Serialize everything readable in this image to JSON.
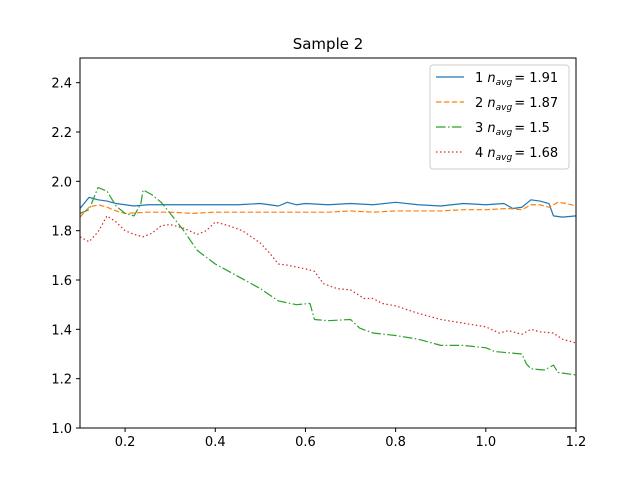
{
  "chart_data": {
    "type": "line",
    "title": "Sample 2",
    "xlabel": "",
    "ylabel": "",
    "xlim": [
      0.1,
      1.2
    ],
    "ylim": [
      1.0,
      2.5
    ],
    "xticks": [
      0.2,
      0.4,
      0.6,
      0.8,
      1.0,
      1.2
    ],
    "xtick_labels": [
      "0.2",
      "0.4",
      "0.6",
      "0.8",
      "1.0",
      "1.2"
    ],
    "yticks": [
      1.0,
      1.2,
      1.4,
      1.6,
      1.8,
      2.0,
      2.2,
      2.4
    ],
    "ytick_labels": [
      "1.0",
      "1.2",
      "1.4",
      "1.6",
      "1.8",
      "2.0",
      "2.2",
      "2.4"
    ],
    "grid": false,
    "legend_position": "top-right",
    "series": [
      {
        "name": "1",
        "label_prefix": "1 ",
        "label_sub": "avg",
        "label_value": "= 1.91",
        "color": "#1f77b4",
        "style": "solid",
        "x": [
          0.1,
          0.12,
          0.14,
          0.16,
          0.18,
          0.2,
          0.22,
          0.25,
          0.3,
          0.35,
          0.4,
          0.45,
          0.5,
          0.54,
          0.56,
          0.58,
          0.6,
          0.65,
          0.7,
          0.75,
          0.8,
          0.85,
          0.9,
          0.95,
          1.0,
          1.04,
          1.06,
          1.08,
          1.1,
          1.12,
          1.14,
          1.15,
          1.17,
          1.2
        ],
        "y": [
          1.89,
          1.935,
          1.925,
          1.92,
          1.91,
          1.905,
          1.9,
          1.905,
          1.905,
          1.905,
          1.905,
          1.905,
          1.91,
          1.9,
          1.915,
          1.905,
          1.91,
          1.905,
          1.91,
          1.905,
          1.915,
          1.905,
          1.9,
          1.91,
          1.905,
          1.91,
          1.89,
          1.895,
          1.925,
          1.92,
          1.91,
          1.86,
          1.855,
          1.86
        ]
      },
      {
        "name": "2",
        "label_prefix": "2 ",
        "label_sub": "avg",
        "label_value": "= 1.87",
        "color": "#ff7f0e",
        "style": "dashed",
        "x": [
          0.1,
          0.12,
          0.14,
          0.16,
          0.18,
          0.2,
          0.25,
          0.3,
          0.35,
          0.4,
          0.45,
          0.5,
          0.55,
          0.6,
          0.65,
          0.7,
          0.75,
          0.8,
          0.85,
          0.9,
          0.95,
          1.0,
          1.05,
          1.08,
          1.1,
          1.12,
          1.14,
          1.16,
          1.18,
          1.2
        ],
        "y": [
          1.855,
          1.895,
          1.905,
          1.895,
          1.88,
          1.87,
          1.875,
          1.875,
          1.87,
          1.875,
          1.875,
          1.875,
          1.875,
          1.875,
          1.875,
          1.88,
          1.875,
          1.88,
          1.88,
          1.88,
          1.885,
          1.885,
          1.89,
          1.885,
          1.905,
          1.905,
          1.895,
          1.915,
          1.91,
          1.9
        ]
      },
      {
        "name": "3",
        "label_prefix": "3 ",
        "label_sub": "avg",
        "label_value": "= 1.5",
        "color": "#2ca02c",
        "style": "dashdot",
        "x": [
          0.1,
          0.12,
          0.14,
          0.16,
          0.18,
          0.2,
          0.22,
          0.235,
          0.24,
          0.26,
          0.28,
          0.3,
          0.33,
          0.36,
          0.4,
          0.45,
          0.5,
          0.54,
          0.58,
          0.61,
          0.62,
          0.65,
          0.7,
          0.72,
          0.75,
          0.8,
          0.85,
          0.9,
          0.95,
          1.0,
          1.02,
          1.05,
          1.08,
          1.09,
          1.1,
          1.13,
          1.15,
          1.16,
          1.2
        ],
        "y": [
          1.87,
          1.885,
          1.975,
          1.96,
          1.9,
          1.87,
          1.86,
          1.91,
          1.965,
          1.945,
          1.915,
          1.87,
          1.8,
          1.72,
          1.665,
          1.615,
          1.565,
          1.515,
          1.5,
          1.505,
          1.44,
          1.435,
          1.44,
          1.405,
          1.385,
          1.375,
          1.36,
          1.335,
          1.335,
          1.325,
          1.31,
          1.305,
          1.3,
          1.26,
          1.24,
          1.235,
          1.255,
          1.225,
          1.215
        ]
      },
      {
        "name": "4",
        "label_prefix": "4 ",
        "label_sub": "avg",
        "label_value": "= 1.68",
        "color": "#d62728",
        "style": "dotted",
        "x": [
          0.1,
          0.12,
          0.14,
          0.16,
          0.18,
          0.2,
          0.22,
          0.24,
          0.26,
          0.28,
          0.3,
          0.33,
          0.36,
          0.38,
          0.4,
          0.43,
          0.46,
          0.5,
          0.52,
          0.54,
          0.56,
          0.6,
          0.62,
          0.64,
          0.67,
          0.7,
          0.73,
          0.75,
          0.77,
          0.8,
          0.85,
          0.9,
          0.95,
          1.0,
          1.03,
          1.05,
          1.08,
          1.1,
          1.12,
          1.15,
          1.17,
          1.2
        ],
        "y": [
          1.775,
          1.755,
          1.795,
          1.86,
          1.835,
          1.8,
          1.785,
          1.775,
          1.79,
          1.82,
          1.825,
          1.81,
          1.785,
          1.8,
          1.835,
          1.82,
          1.8,
          1.75,
          1.71,
          1.665,
          1.66,
          1.645,
          1.635,
          1.585,
          1.565,
          1.56,
          1.525,
          1.525,
          1.505,
          1.495,
          1.465,
          1.44,
          1.425,
          1.41,
          1.385,
          1.395,
          1.38,
          1.4,
          1.39,
          1.385,
          1.36,
          1.345
        ]
      }
    ]
  }
}
